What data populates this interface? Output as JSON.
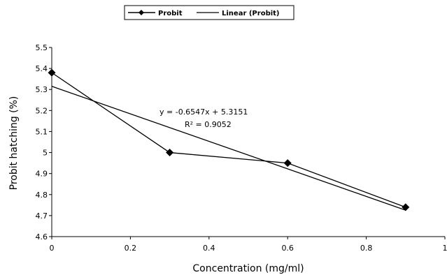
{
  "chart_data": {
    "type": "line",
    "title": "",
    "xlabel": "Concentration (mg/ml)",
    "ylabel": "Probit hatching (%)",
    "xlim": [
      0,
      1
    ],
    "ylim": [
      4.6,
      5.5
    ],
    "x_ticks": [
      "0",
      "0.2",
      "0.4",
      "0.6",
      "0.8",
      "1"
    ],
    "y_ticks": [
      "4.6",
      "4.7",
      "4.8",
      "4.9",
      "5",
      "5.1",
      "5.2",
      "5.3",
      "5.4",
      "5.5"
    ],
    "series": [
      {
        "name": "Probit",
        "style": "line-with-diamond-markers",
        "x": [
          0,
          0.3,
          0.6,
          0.9
        ],
        "y": [
          5.38,
          5.0,
          4.95,
          4.74
        ]
      },
      {
        "name": "Linear (Probit)",
        "style": "trendline",
        "slope": -0.6547,
        "intercept": 5.3151,
        "x": [
          0,
          0.9
        ],
        "y": [
          5.3151,
          4.7259
        ]
      }
    ],
    "annotations": [
      "y = -0.6547x + 5.3151",
      "R² = 0.9052"
    ],
    "legend": "top-center",
    "grid": false,
    "colors": {
      "line": "#000000",
      "background": "#ffffff"
    }
  }
}
